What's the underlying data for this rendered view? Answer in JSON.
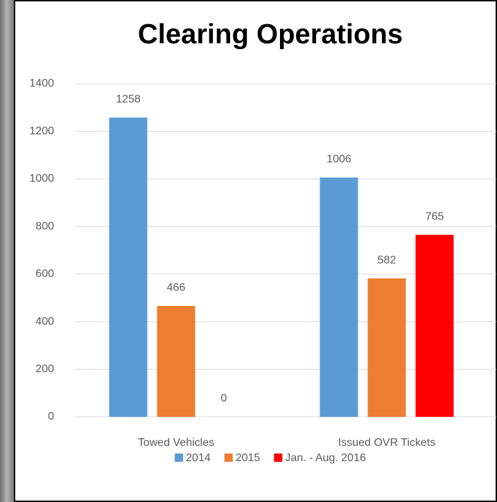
{
  "chart_data": {
    "type": "bar",
    "title": "Clearing Operations",
    "categories": [
      "Towed Vehicles",
      "Issued OVR Tickets"
    ],
    "series": [
      {
        "name": "2014",
        "color": "#5b9bd5",
        "values": [
          1258,
          1006
        ]
      },
      {
        "name": "2015",
        "color": "#ed7d31",
        "values": [
          466,
          582
        ]
      },
      {
        "name": "Jan. - Aug. 2016",
        "color": "#ff0000",
        "values": [
          0,
          765
        ]
      }
    ],
    "ylim": [
      0,
      1400
    ],
    "yticks": [
      0,
      200,
      400,
      600,
      800,
      1000,
      1200,
      1400
    ],
    "grid": true,
    "legend": "bottom"
  }
}
